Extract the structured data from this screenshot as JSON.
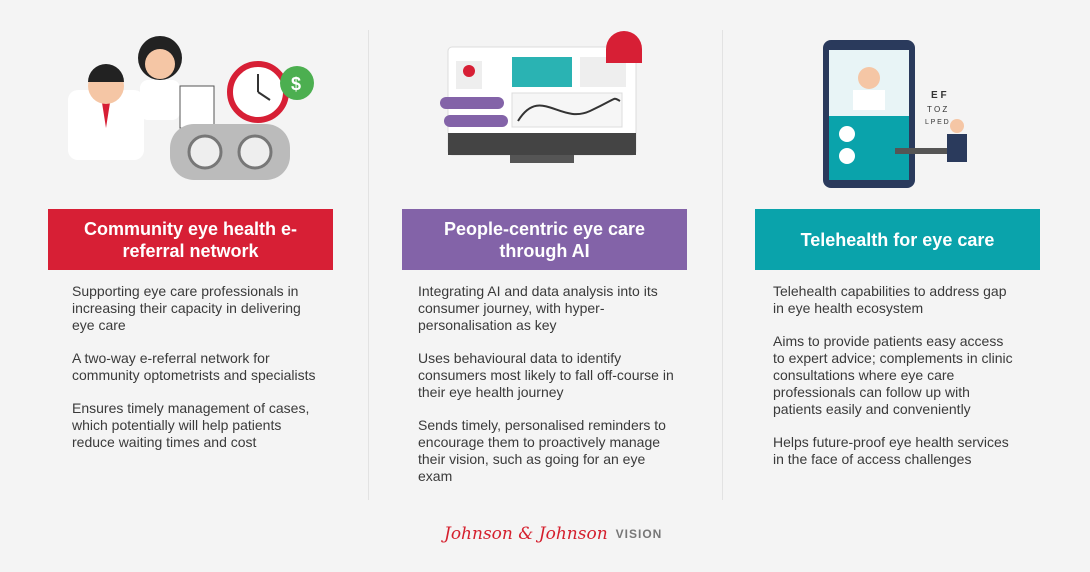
{
  "columns": [
    {
      "title": "Community eye health e-referral network",
      "color": "#d71f35",
      "bullets": [
        "Supporting eye care professionals in increasing their capacity in delivering eye care",
        "A two-way e-referral network for community optometrists and specialists",
        "Ensures timely management of cases, which potentially will help patients reduce waiting times and cost"
      ]
    },
    {
      "title": "People-centric eye care through AI",
      "color": "#8363a8",
      "bullets": [
        "Integrating AI and data analysis into its consumer journey, with hyper-personalisation as key",
        "Uses behavioural data to identify consumers most likely to fall off-course in their eye health journey",
        "Sends timely, personalised reminders to encourage them to proactively manage their vision, such as going for an eye exam"
      ]
    },
    {
      "title": "Telehealth for eye care",
      "color": "#0aa3ab",
      "bullets": [
        "Telehealth capabilities to address gap in eye health ecosystem",
        "Aims to provide patients easy access to expert advice; complements in clinic consultations where eye care professionals can follow up with patients easily and conveniently",
        "Helps future-proof eye health services in the face of access challenges"
      ]
    }
  ],
  "icons": [
    "doctors-clock-phoropter-illustration",
    "ai-monitor-alarm-bell-illustration",
    "telehealth-tablet-doctor-illustration"
  ],
  "logo": {
    "brand": "Johnson & Johnson",
    "suffix": "VISION"
  }
}
